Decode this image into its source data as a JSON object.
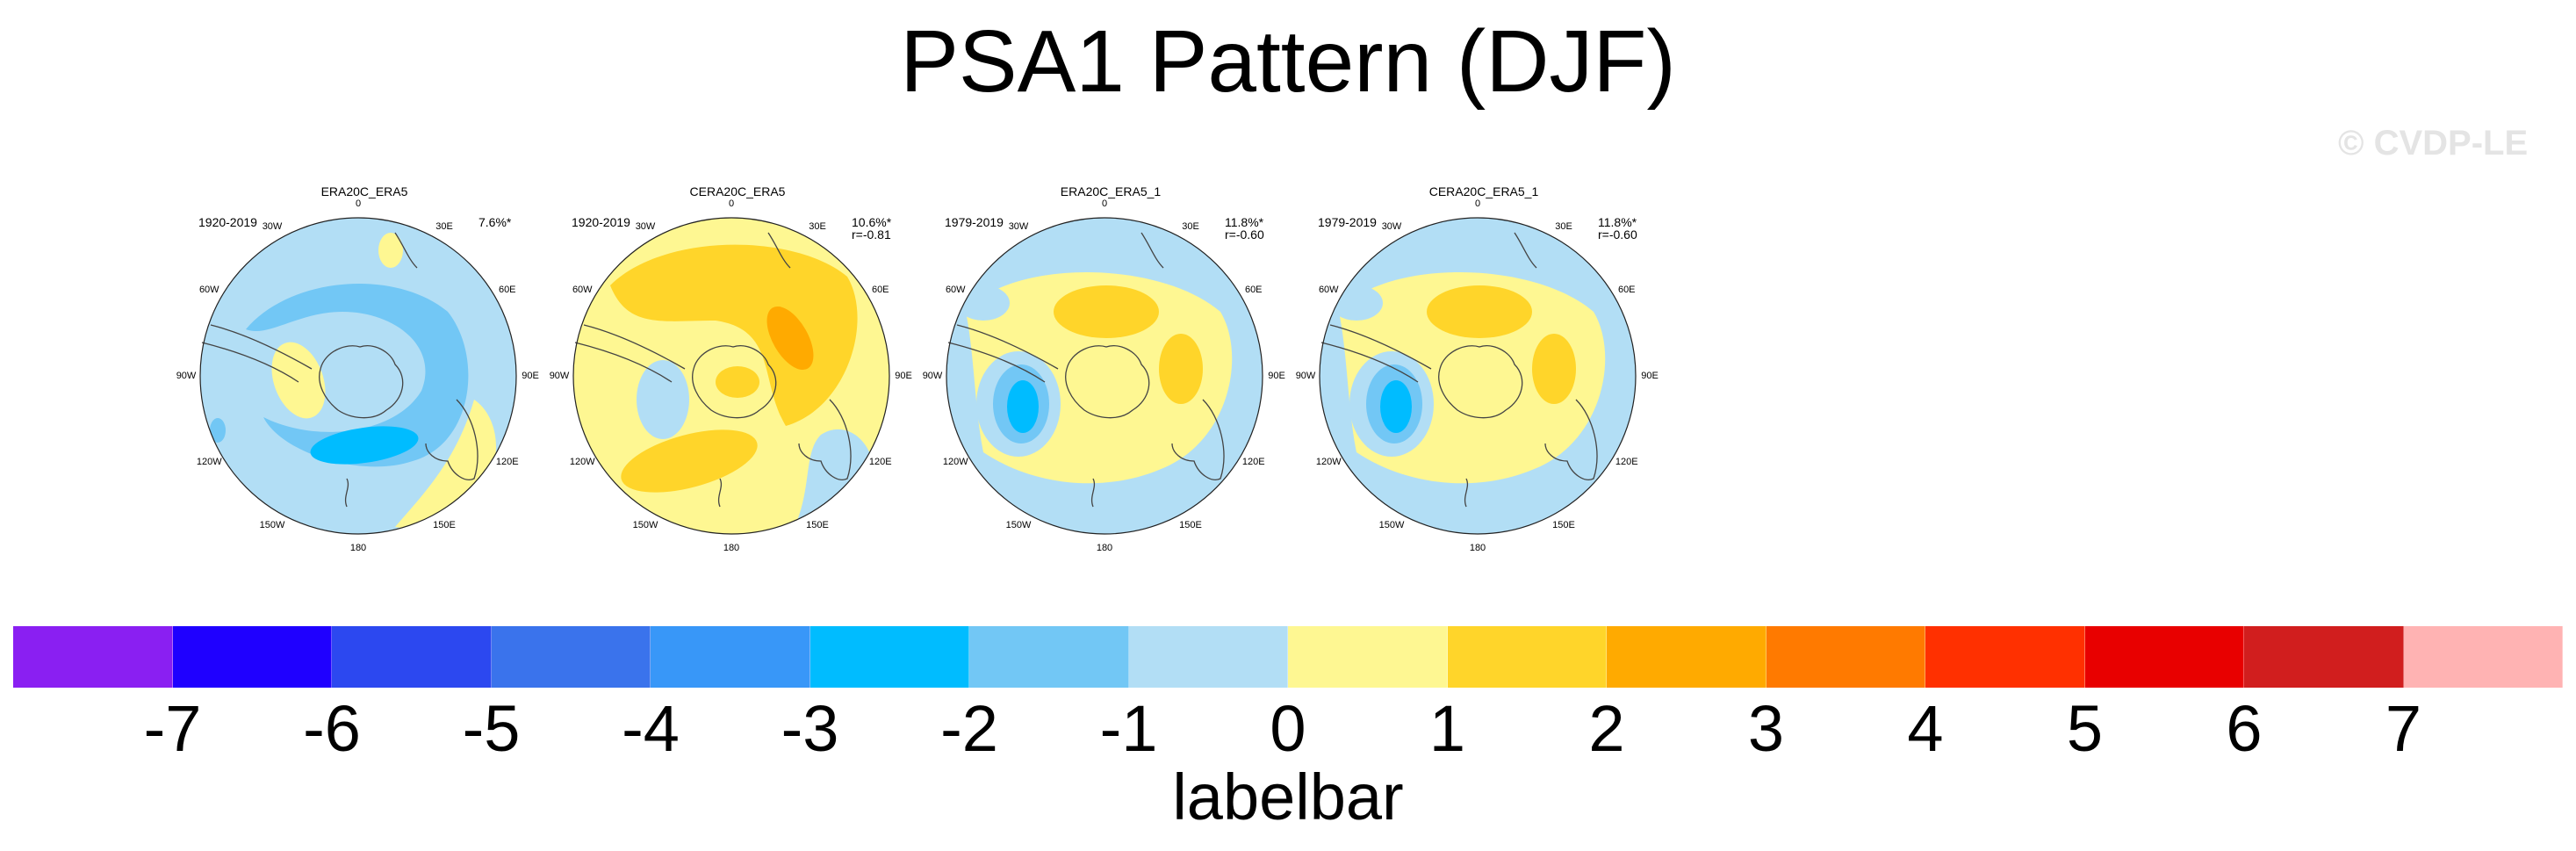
{
  "title": "PSA1 Pattern (DJF)",
  "watermark": "© CVDP-LE",
  "longitude_labels": [
    "0",
    "30E",
    "60E",
    "90E",
    "120E",
    "150E",
    "180",
    "150W",
    "120W",
    "90W",
    "60W",
    "30W"
  ],
  "panels": [
    {
      "title": "ERA20C_ERA5",
      "years": "1920-2019",
      "variance": "7.6%*",
      "correlation": "",
      "pattern": "negative"
    },
    {
      "title": "CERA20C_ERA5",
      "years": "1920-2019",
      "variance": "10.6%*",
      "correlation": "r=-0.81",
      "pattern": "positive"
    },
    {
      "title": "ERA20C_ERA5_1",
      "years": "1979-2019",
      "variance": "11.8%*",
      "correlation": "r=-0.60",
      "pattern": "modern"
    },
    {
      "title": "CERA20C_ERA5_1",
      "years": "1979-2019",
      "variance": "11.8%*",
      "correlation": "r=-0.60",
      "pattern": "modern"
    }
  ],
  "labelbar": {
    "title": "labelbar",
    "ticks": [
      "-7",
      "-6",
      "-5",
      "-4",
      "-3",
      "-2",
      "-1",
      "0",
      "1",
      "2",
      "3",
      "4",
      "5",
      "6",
      "7"
    ],
    "colors": [
      "#8a1ff2",
      "#1f00ff",
      "#2c48f0",
      "#3a73ec",
      "#3897f8",
      "#00bcff",
      "#72c7f5",
      "#b2def5",
      "#fef792",
      "#ffd52a",
      "#ffaa00",
      "#ff7a00",
      "#ff3000",
      "#e80000",
      "#d11e1e",
      "#ffb3b3"
    ]
  }
}
